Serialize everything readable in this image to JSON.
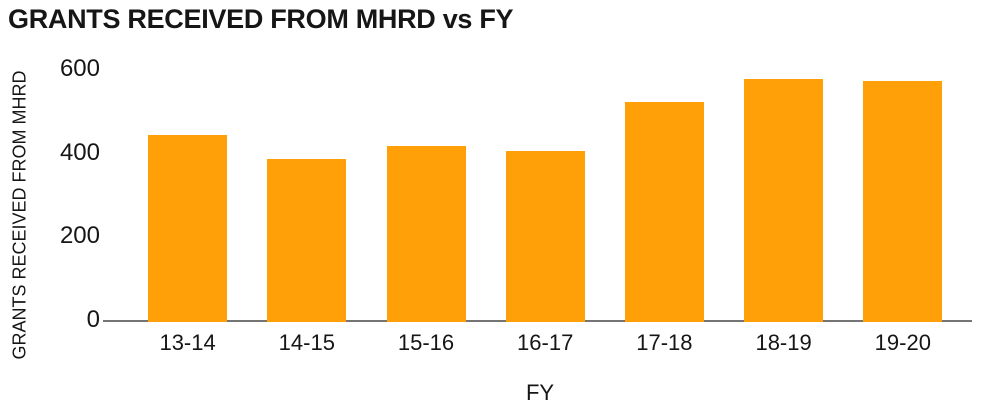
{
  "chart_data": {
    "type": "bar",
    "title": "GRANTS RECEIVED FROM MHRD vs FY",
    "xlabel": "FY",
    "ylabel": "GRANTS RECEIVED FROM MHRD",
    "categories": [
      "13-14",
      "14-15",
      "15-16",
      "16-17",
      "17-18",
      "18-19",
      "19-20"
    ],
    "values": [
      445,
      388,
      418,
      406,
      523,
      578,
      573
    ],
    "yticks": [
      0,
      200,
      400,
      600
    ],
    "ylim": [
      0,
      600
    ],
    "grid": false,
    "legend": false,
    "bar_color": "#FFA008",
    "axis_line_color": "#757575",
    "text_color": "#161616",
    "background_color": "#FFFFFF"
  }
}
